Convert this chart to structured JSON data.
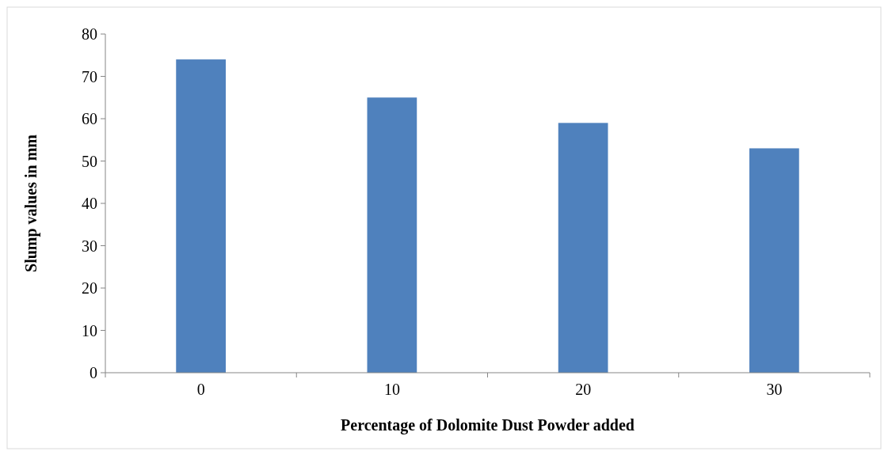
{
  "chart_data": {
    "type": "bar",
    "xlabel": "Percentage of Dolomite Dust Powder added",
    "ylabel": "Slump values in mm",
    "categories": [
      "0",
      "10",
      "20",
      "30"
    ],
    "values": [
      74,
      65,
      59,
      53
    ],
    "color": "#4f81bd",
    "ylim": [
      0,
      80
    ],
    "yticks": [
      0,
      10,
      20,
      30,
      40,
      50,
      60,
      70,
      80
    ],
    "grid": false
  }
}
